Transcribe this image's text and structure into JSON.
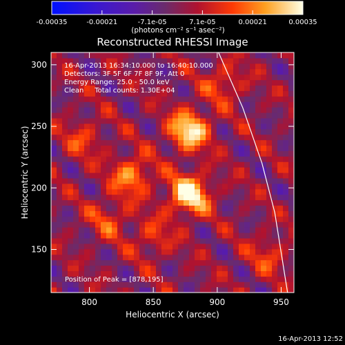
{
  "chart_data": {
    "type": "heatmap",
    "title": "Reconstructed RHESSI Image",
    "xlabel": "Heliocentric X (arcsec)",
    "ylabel": "Heliocentric Y (arcsec)",
    "xlim": [
      770,
      960
    ],
    "ylim": [
      115,
      310
    ],
    "xticks": [
      800,
      850,
      900,
      950
    ],
    "yticks": [
      150,
      200,
      250,
      300
    ],
    "colorbar": {
      "range": [
        -0.00035,
        0.00035
      ],
      "tick_labels": [
        "-0.00035",
        "-0.00021",
        "-7.1e-05",
        "7.1e-05",
        "0.00021",
        "0.00035"
      ],
      "unit_label": "(photons cm⁻² s⁻¹ asec⁻²)",
      "colors": [
        "#0010ff",
        "#5a1ca8",
        "#6a2b6c",
        "#b0122f",
        "#ff3a05",
        "#ffa020",
        "#ffffe6"
      ]
    },
    "annotations": [
      "16-Apr-2013 16:34:10.000 to 16:40:10.000",
      "Detectors: 3F 5F 6F 7F 8F 9F, Att 0",
      "Energy Range: 25.0 - 50.0 keV",
      "Clean     Total counts: 1.30E+04"
    ],
    "peak_label": "Position of Peak = [878,195]",
    "peaks": [
      {
        "x": 878,
        "y": 195,
        "value": 0.00035
      },
      {
        "x": 878,
        "y": 247,
        "value": 0.00032
      },
      {
        "x": 833,
        "y": 210,
        "value": 0.00022
      },
      {
        "x": 795,
        "y": 240,
        "value": 0.00012
      },
      {
        "x": 815,
        "y": 175,
        "value": 0.00013
      },
      {
        "x": 850,
        "y": 160,
        "value": 0.00012
      },
      {
        "x": 905,
        "y": 285,
        "value": 0.00014
      },
      {
        "x": 940,
        "y": 145,
        "value": 0.00012
      }
    ],
    "limb_curve": [
      {
        "x": 901,
        "y": 310
      },
      {
        "x": 920,
        "y": 265
      },
      {
        "x": 935,
        "y": 220
      },
      {
        "x": 945,
        "y": 180
      },
      {
        "x": 955,
        "y": 115
      }
    ],
    "footer_timestamp": "16-Apr-2013 12:52"
  }
}
